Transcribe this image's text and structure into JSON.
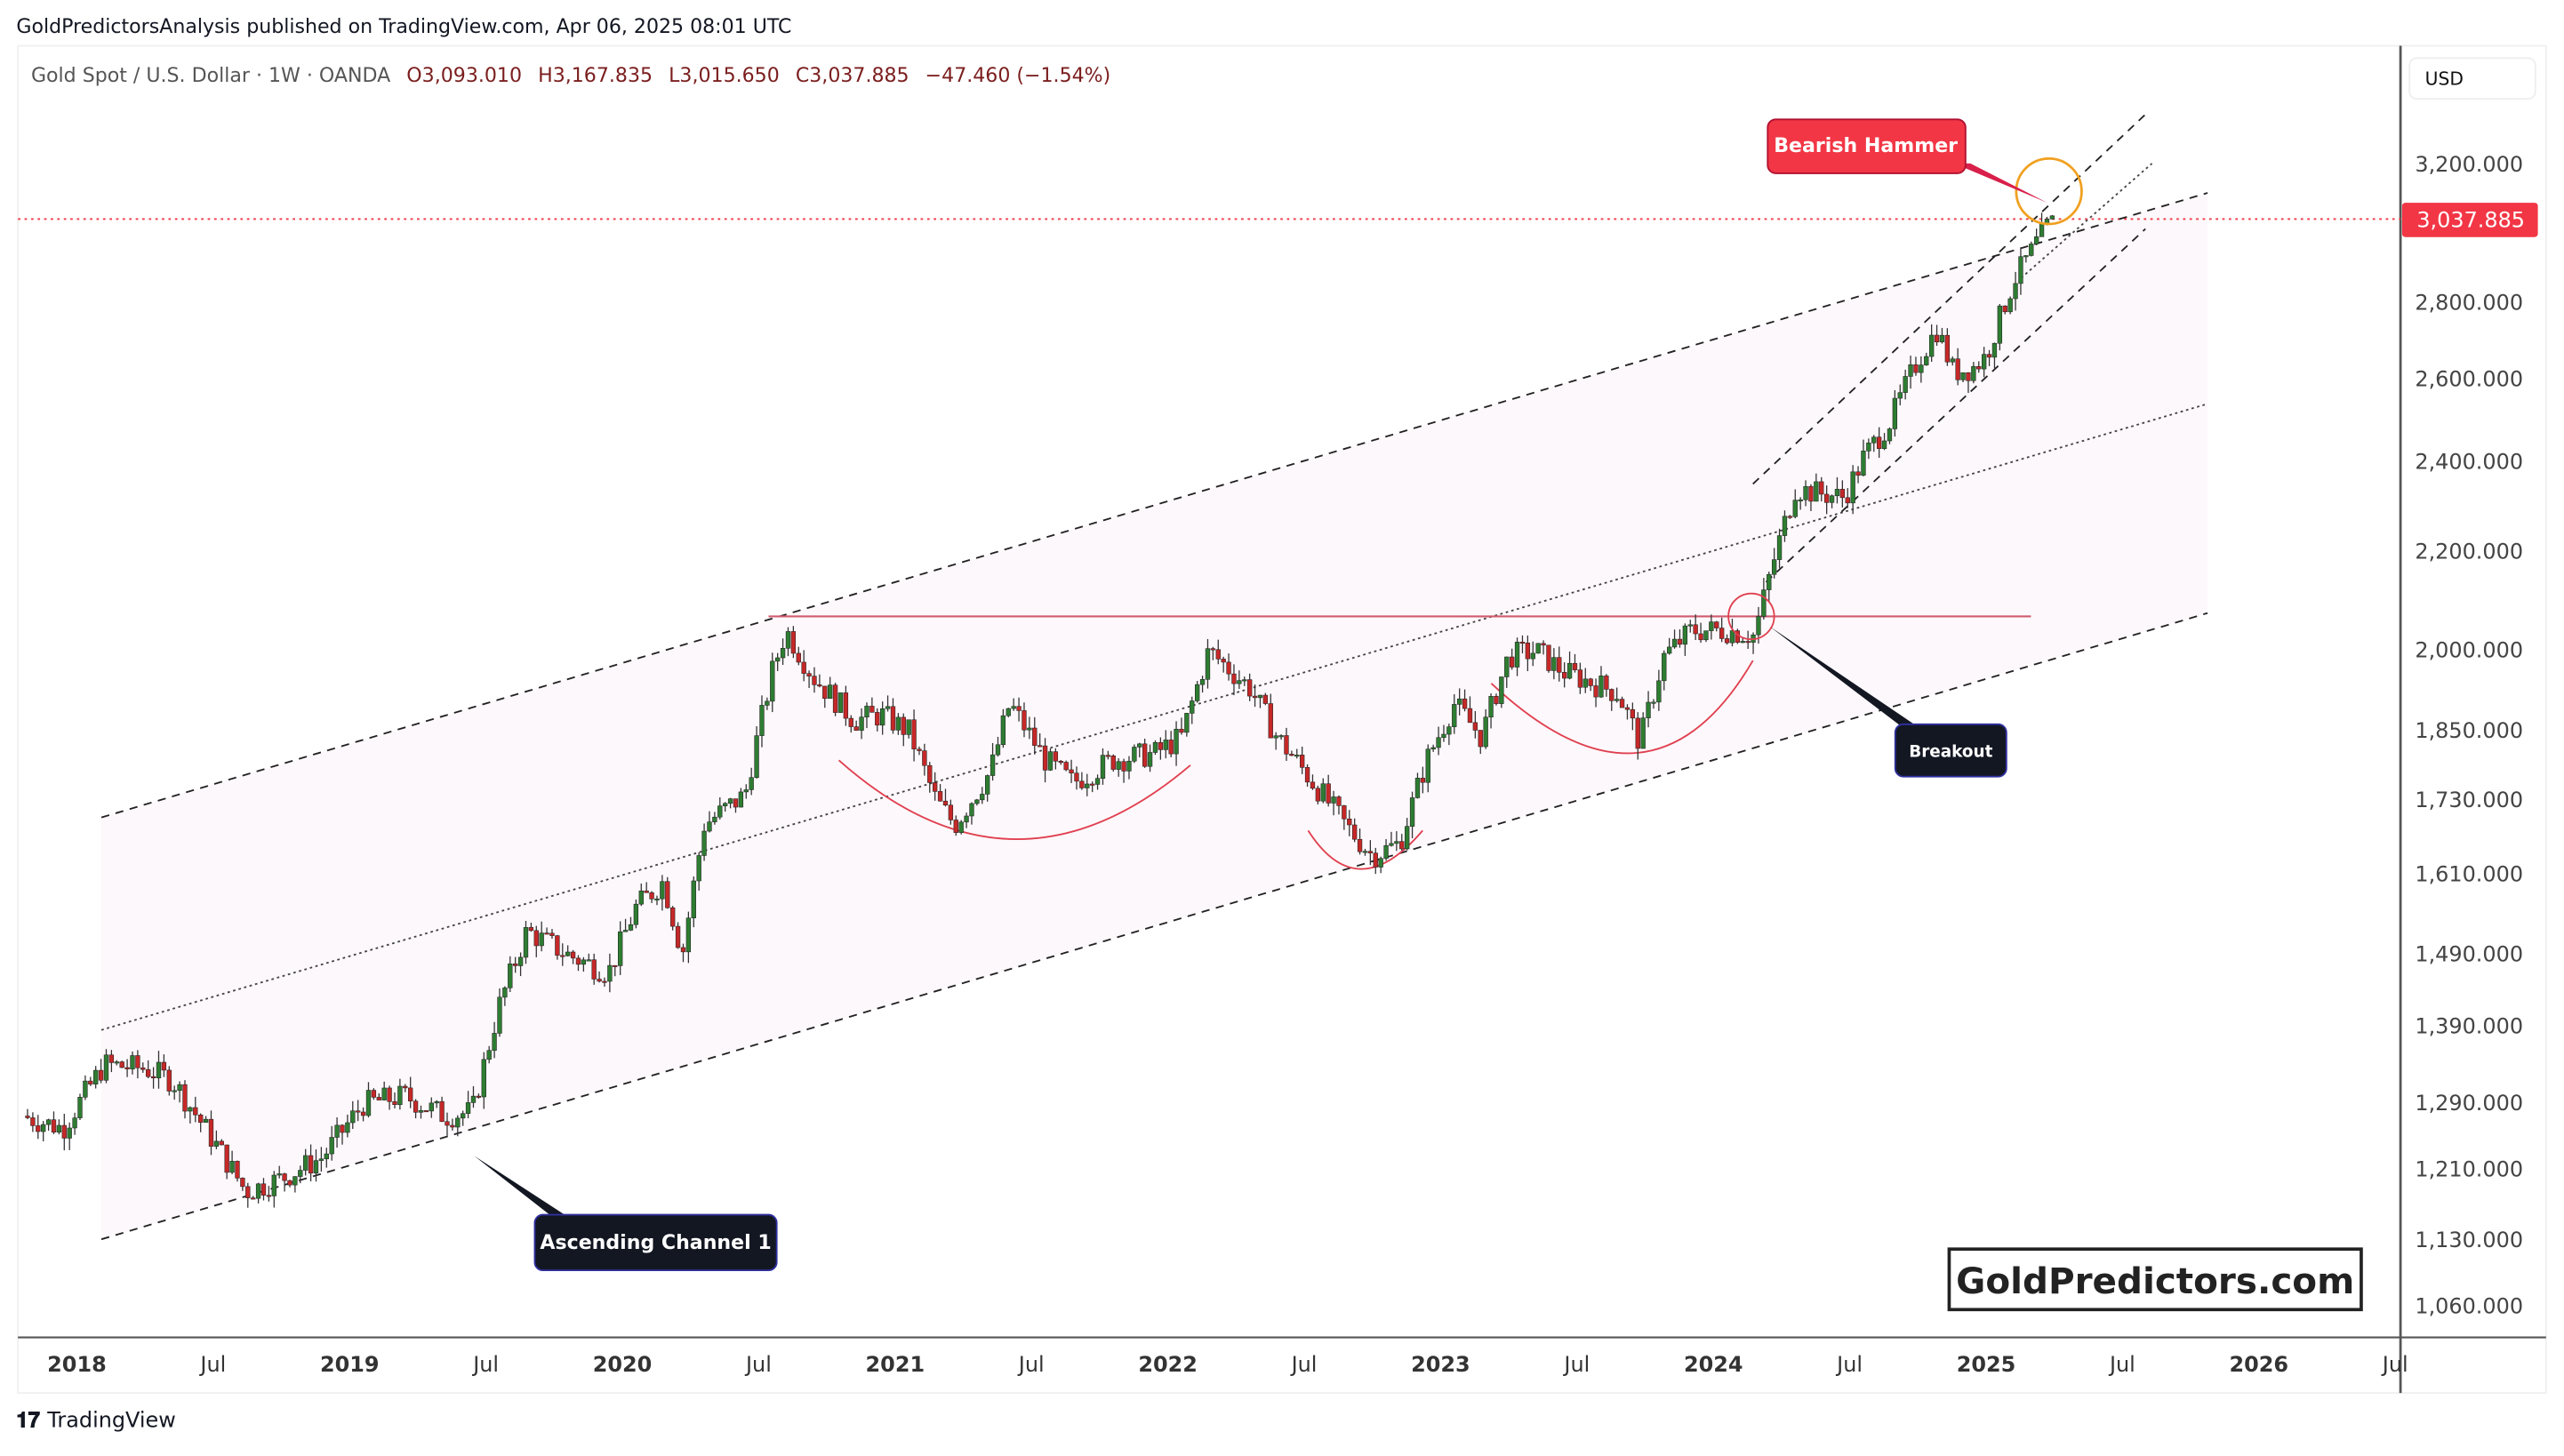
{
  "header": {
    "published": "GoldPredictorsAnalysis published on TradingView.com, Apr 06, 2025 08:01 UTC"
  },
  "legend": {
    "symbol": "Gold Spot / U.S. Dollar · 1W · OANDA",
    "open": "O3,093.010",
    "high": "H3,167.835",
    "low": "L3,015.650",
    "close": "C3,037.885",
    "change": "−47.460 (−1.54%)"
  },
  "currency": "USD",
  "last_price": "3,037.885",
  "footer": {
    "logo": "TradingView"
  },
  "watermark": "GoldPredictors.com",
  "annotations": {
    "bearish": "Bearish Hammer",
    "breakout": "Breakout",
    "channel": "Ascending Channel 1"
  },
  "colors": {
    "up": "#2e7d32",
    "down": "#c62828",
    "price_label": "#f23645",
    "resistance": "#d05a6e"
  },
  "chart_data": {
    "type": "candlestick",
    "title": "Gold Spot / U.S. Dollar · 1W · OANDA",
    "yscale": "log",
    "ylim": [
      1040,
      3450
    ],
    "y_ticks": [
      1060,
      1130,
      1210,
      1290,
      1390,
      1490,
      1610,
      1730,
      1850,
      2000,
      2200,
      2400,
      2600,
      2800,
      3200
    ],
    "y_tick_labels": [
      "1,060.000",
      "1,130.000",
      "1,210.000",
      "1,290.000",
      "1,390.000",
      "1,490.000",
      "1,610.000",
      "1,730.000",
      "1,850.000",
      "2,000.000",
      "2,200.000",
      "2,400.000",
      "2,600.000",
      "2,800.000",
      "3,200.000"
    ],
    "x_ticks": [
      2018,
      2018.5,
      2019,
      2019.5,
      2020,
      2020.5,
      2021,
      2021.5,
      2022,
      2022.5,
      2023,
      2023.5,
      2024,
      2024.5,
      2025,
      2025.5,
      2026,
      2026.5
    ],
    "x_tick_labels": [
      "2018",
      "Jul",
      "2019",
      "Jul",
      "2020",
      "Jul",
      "2021",
      "Jul",
      "2022",
      "Jul",
      "2023",
      "Jul",
      "2024",
      "Jul",
      "2025",
      "Jul",
      "2026",
      "Jul"
    ],
    "price_path": [
      [
        2017.8,
        1275
      ],
      [
        2017.95,
        1260
      ],
      [
        2018.1,
        1340
      ],
      [
        2018.25,
        1335
      ],
      [
        2018.35,
        1320
      ],
      [
        2018.5,
        1245
      ],
      [
        2018.62,
        1185
      ],
      [
        2018.75,
        1200
      ],
      [
        2018.9,
        1225
      ],
      [
        2019.05,
        1290
      ],
      [
        2019.2,
        1300
      ],
      [
        2019.35,
        1275
      ],
      [
        2019.45,
        1280
      ],
      [
        2019.55,
        1420
      ],
      [
        2019.65,
        1525
      ],
      [
        2019.8,
        1490
      ],
      [
        2019.95,
        1465
      ],
      [
        2020.05,
        1560
      ],
      [
        2020.15,
        1600
      ],
      [
        2020.22,
        1490
      ],
      [
        2020.3,
        1690
      ],
      [
        2020.45,
        1740
      ],
      [
        2020.55,
        1960
      ],
      [
        2020.6,
        2040
      ],
      [
        2020.7,
        1950
      ],
      [
        2020.85,
        1870
      ],
      [
        2020.95,
        1880
      ],
      [
        2021.05,
        1850
      ],
      [
        2021.15,
        1730
      ],
      [
        2021.22,
        1690
      ],
      [
        2021.35,
        1780
      ],
      [
        2021.42,
        1900
      ],
      [
        2021.55,
        1800
      ],
      [
        2021.65,
        1760
      ],
      [
        2021.8,
        1800
      ],
      [
        2021.95,
        1810
      ],
      [
        2022.05,
        1840
      ],
      [
        2022.15,
        2000
      ],
      [
        2022.3,
        1930
      ],
      [
        2022.4,
        1840
      ],
      [
        2022.55,
        1750
      ],
      [
        2022.65,
        1690
      ],
      [
        2022.75,
        1640
      ],
      [
        2022.85,
        1660
      ],
      [
        2022.95,
        1800
      ],
      [
        2023.05,
        1900
      ],
      [
        2023.15,
        1840
      ],
      [
        2023.25,
        1990
      ],
      [
        2023.35,
        2000
      ],
      [
        2023.45,
        1960
      ],
      [
        2023.55,
        1940
      ],
      [
        2023.65,
        1920
      ],
      [
        2023.73,
        1830
      ],
      [
        2023.82,
        1990
      ],
      [
        2023.92,
        2040
      ],
      [
        2024.05,
        2040
      ],
      [
        2024.15,
        2030
      ],
      [
        2024.22,
        2180
      ],
      [
        2024.3,
        2340
      ],
      [
        2024.38,
        2330
      ],
      [
        2024.48,
        2320
      ],
      [
        2024.55,
        2410
      ],
      [
        2024.65,
        2500
      ],
      [
        2024.75,
        2650
      ],
      [
        2024.82,
        2730
      ],
      [
        2024.88,
        2620
      ],
      [
        2024.95,
        2630
      ],
      [
        2025.0,
        2660
      ],
      [
        2025.1,
        2860
      ],
      [
        2025.18,
        2960
      ],
      [
        2025.22,
        3010
      ],
      [
        2025.26,
        3038
      ]
    ]
  }
}
